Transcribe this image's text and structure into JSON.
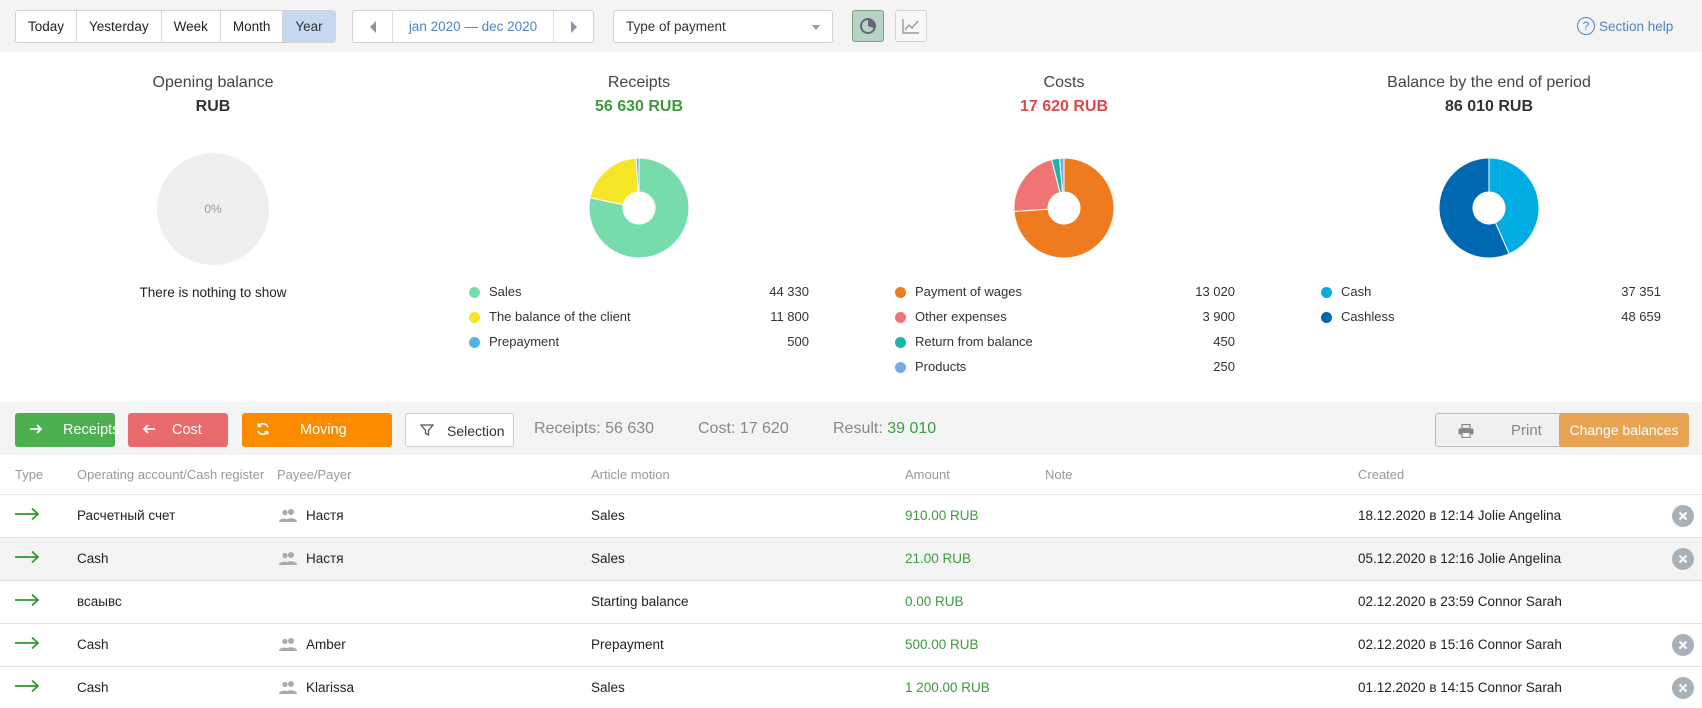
{
  "toolbar": {
    "periods": [
      "Today",
      "Yesterday",
      "Week",
      "Month",
      "Year"
    ],
    "active_period": "Year",
    "date_range": "jan 2020 — dec 2020",
    "payment_select": "Type of payment",
    "help_label": "Section help"
  },
  "summary": {
    "opening": {
      "title": "Opening balance",
      "amount": "RUB",
      "chart_label": "0%",
      "empty_text": "There is nothing to show"
    },
    "receipts": {
      "title": "Receipts",
      "amount": "56 630 RUB",
      "items": [
        {
          "name": "Sales",
          "value": "44 330",
          "color": "#77dcab"
        },
        {
          "name": "The balance of the client",
          "value": "11 800",
          "color": "#f5e62a"
        },
        {
          "name": "Prepayment",
          "value": "500",
          "color": "#4fb5e5"
        }
      ]
    },
    "costs": {
      "title": "Costs",
      "amount": "17 620 RUB",
      "items": [
        {
          "name": "Payment of wages",
          "value": "13 020",
          "color": "#ee7b1f"
        },
        {
          "name": "Other expenses",
          "value": "3 900",
          "color": "#f07474"
        },
        {
          "name": "Return from balance",
          "value": "450",
          "color": "#19b5a6"
        },
        {
          "name": "Products",
          "value": "250",
          "color": "#7aa8e6"
        }
      ]
    },
    "balance": {
      "title": "Balance by the end of period",
      "amount": "86 010 RUB",
      "items": [
        {
          "name": "Cash",
          "value": "37 351",
          "color": "#00ace1"
        },
        {
          "name": "Cashless",
          "value": "48 659",
          "color": "#0068b0"
        }
      ]
    }
  },
  "chart_data": [
    {
      "type": "pie",
      "categories": [
        "Sales",
        "The balance of the client",
        "Prepayment"
      ],
      "values": [
        44330,
        11800,
        500
      ]
    },
    {
      "type": "pie",
      "categories": [
        "Payment of wages",
        "Other expenses",
        "Return from balance",
        "Products"
      ],
      "values": [
        13020,
        3900,
        450,
        250
      ]
    },
    {
      "type": "pie",
      "categories": [
        "Cash",
        "Cashless"
      ],
      "values": [
        37351,
        48659
      ]
    }
  ],
  "actions": {
    "receipts": "Receipts",
    "cost": "Cost",
    "moving": "Moving",
    "selection": "Selection",
    "receipts_stat_label": "Receipts: 56 630",
    "cost_stat_label": "Cost: 17 620",
    "result_label": "Result:",
    "result_value": "39 010",
    "print": "Print",
    "change_balances": "Change balances"
  },
  "table": {
    "headers": {
      "type": "Type",
      "account": "Operating account/Cash register",
      "payee": "Payee/Payer",
      "article": "Article motion",
      "amount": "Amount",
      "note": "Note",
      "created": "Created"
    },
    "rows": [
      {
        "account": "Расчетный счет",
        "payee": "Настя",
        "article": "Sales",
        "amount": "910.00 RUB",
        "note": "",
        "created": "18.12.2020 в 12:14 Jolie Angelina"
      },
      {
        "account": "Cash",
        "payee": "Настя",
        "article": "Sales",
        "amount": "21.00 RUB",
        "note": "",
        "created": "05.12.2020 в 12:16 Jolie Angelina"
      },
      {
        "account": "всаывс",
        "payee": "",
        "article": "Starting balance",
        "amount": "0.00 RUB",
        "note": "",
        "created": "02.12.2020 в 23:59 Connor Sarah"
      },
      {
        "account": "Cash",
        "payee": "Amber",
        "article": "Prepayment",
        "amount": "500.00 RUB",
        "note": "",
        "created": "02.12.2020 в 15:16 Connor Sarah"
      },
      {
        "account": "Cash",
        "payee": "Klarissa",
        "article": "Sales",
        "amount": "1 200.00 RUB",
        "note": "",
        "created": "01.12.2020 в 14:15 Connor Sarah"
      }
    ]
  }
}
